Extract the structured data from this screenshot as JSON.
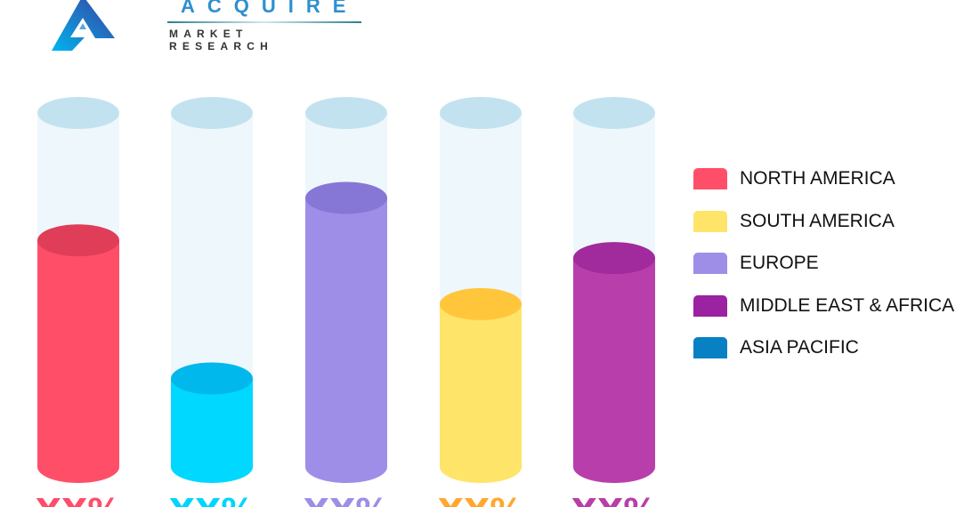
{
  "logo": {
    "top": "ACQUIRE",
    "bottom": "MARKET RESEARCH"
  },
  "chart_data": {
    "type": "bar",
    "style": "cylinder",
    "categories": [
      "NORTH AMERICA",
      "ASIA PACIFIC",
      "EUROPE",
      "SOUTH AMERICA",
      "MIDDLE EAST & AFRICA"
    ],
    "fill_percent": [
      64,
      25,
      76,
      46,
      59
    ],
    "data_labels": [
      "XX%",
      "XX%",
      "XX%",
      "XX%",
      "XX%"
    ],
    "colors": [
      "#ff4f68",
      "#00d8ff",
      "#9f8ee8",
      "#ffe46a",
      "#b83fab"
    ],
    "top_colors": [
      "#e03d58",
      "#00b8ec",
      "#8677d6",
      "#ffc63c",
      "#a12a9d"
    ],
    "label_colors": [
      "#ff4d6a",
      "#00d5ff",
      "#9f8ee6",
      "#ffa830",
      "#b83fa8"
    ],
    "legend": {
      "placement": "right",
      "items": [
        {
          "label": "NORTH AMERICA",
          "color": "#ff4f68"
        },
        {
          "label": "SOUTH AMERICA",
          "color": "#ffe46a"
        },
        {
          "label": "EUROPE",
          "color": "#9f8ee8"
        },
        {
          "label": "MIDDLE EAST & AFRICA",
          "color": "#9b22a0"
        },
        {
          "label": "ASIA PACIFIC",
          "color": "#0880c4"
        }
      ]
    }
  }
}
